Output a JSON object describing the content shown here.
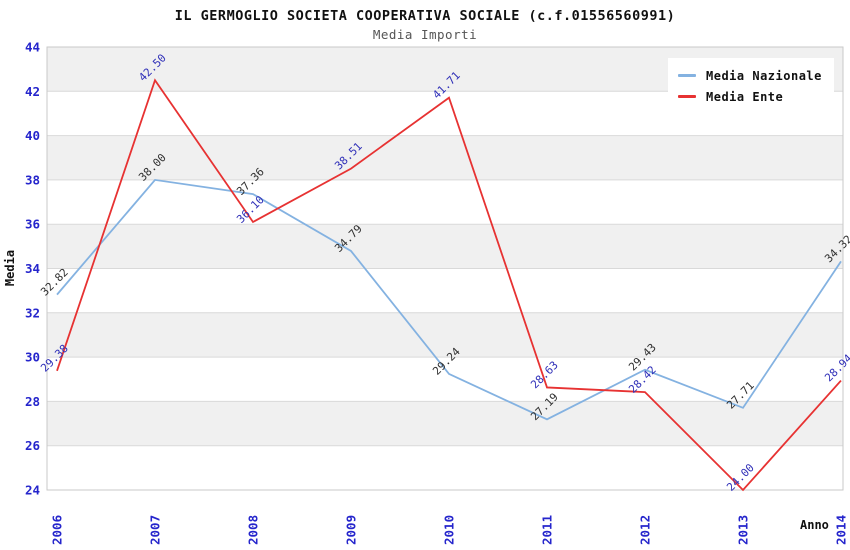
{
  "title": "IL GERMOGLIO SOCIETA COOPERATIVA SOCIALE (c.f.01556560991)",
  "subtitle": "Media Importi",
  "chart_data": {
    "type": "line",
    "x": [
      "2006",
      "2007",
      "2008",
      "2009",
      "2010",
      "2011",
      "2012",
      "2013",
      "2014"
    ],
    "series": [
      {
        "name": "Media Nazionale",
        "color": "#84b2e1",
        "label_color": "#303030",
        "values": [
          32.82,
          38.0,
          37.36,
          34.79,
          29.24,
          27.19,
          29.43,
          27.71,
          34.32
        ]
      },
      {
        "name": "Media Ente",
        "color": "#e73232",
        "label_color": "#3030b8",
        "values": [
          29.38,
          42.5,
          36.1,
          38.51,
          41.71,
          28.63,
          28.42,
          24.0,
          28.94
        ]
      }
    ],
    "xlabel": "Anno",
    "ylabel": "Media",
    "ylim": [
      24,
      44
    ],
    "ytick_step": 2,
    "grid": true,
    "banded_background": true,
    "legend_position": "top-right",
    "point_labels_decimals": 2
  },
  "colors": {
    "tick_label": "#2525cc",
    "band_fill": "#f0f0f0",
    "grid_line": "#d9d9d9",
    "plot_border": "#c9c9c9",
    "axis_title": "#111111"
  }
}
